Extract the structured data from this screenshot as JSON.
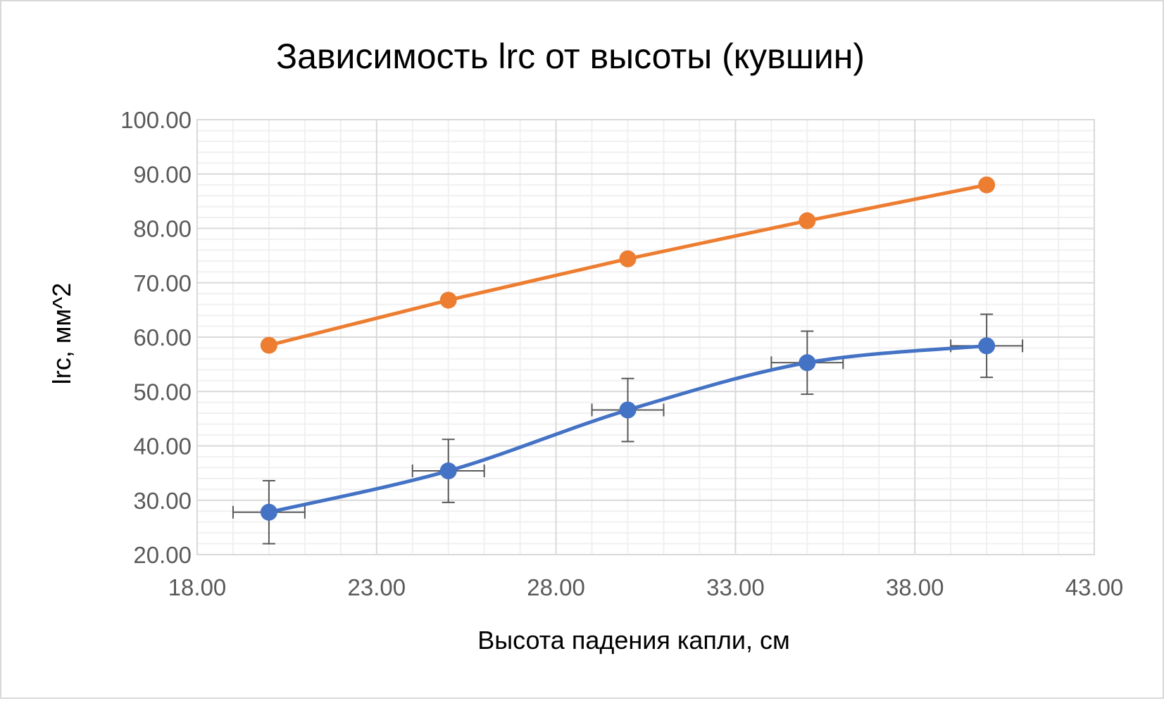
{
  "chart_data": {
    "type": "scatter",
    "title": "Зависимость lrc от высоты (кувшин)",
    "xlabel": "Высота падения капли, см",
    "ylabel": "lrc, мм^2",
    "xlim": [
      18,
      43
    ],
    "ylim": [
      20,
      100
    ],
    "x_major_step": 5,
    "x_minor_step": 1,
    "y_major_step": 10,
    "y_minor_step": 2,
    "x_tick_labels": [
      "18.00",
      "23.00",
      "28.00",
      "33.00",
      "38.00",
      "43.00"
    ],
    "y_tick_labels": [
      "20.00",
      "30.00",
      "40.00",
      "50.00",
      "60.00",
      "70.00",
      "80.00",
      "90.00",
      "100.00"
    ],
    "grid": true,
    "legend": "none",
    "series": [
      {
        "color": "#ed7d31",
        "line": "straight",
        "x": [
          20,
          25,
          30,
          35,
          40
        ],
        "y": [
          58.5,
          66.8,
          74.4,
          81.4,
          88.0
        ]
      },
      {
        "color": "#4472c4",
        "line": "smooth",
        "x": [
          20,
          25,
          30,
          35,
          40
        ],
        "y": [
          27.8,
          35.4,
          46.6,
          55.3,
          58.4
        ],
        "y_error": [
          5.8,
          5.8,
          5.8,
          5.8,
          5.8
        ],
        "x_error": [
          1.0,
          1.0,
          1.0,
          1.0,
          1.0
        ]
      }
    ]
  }
}
